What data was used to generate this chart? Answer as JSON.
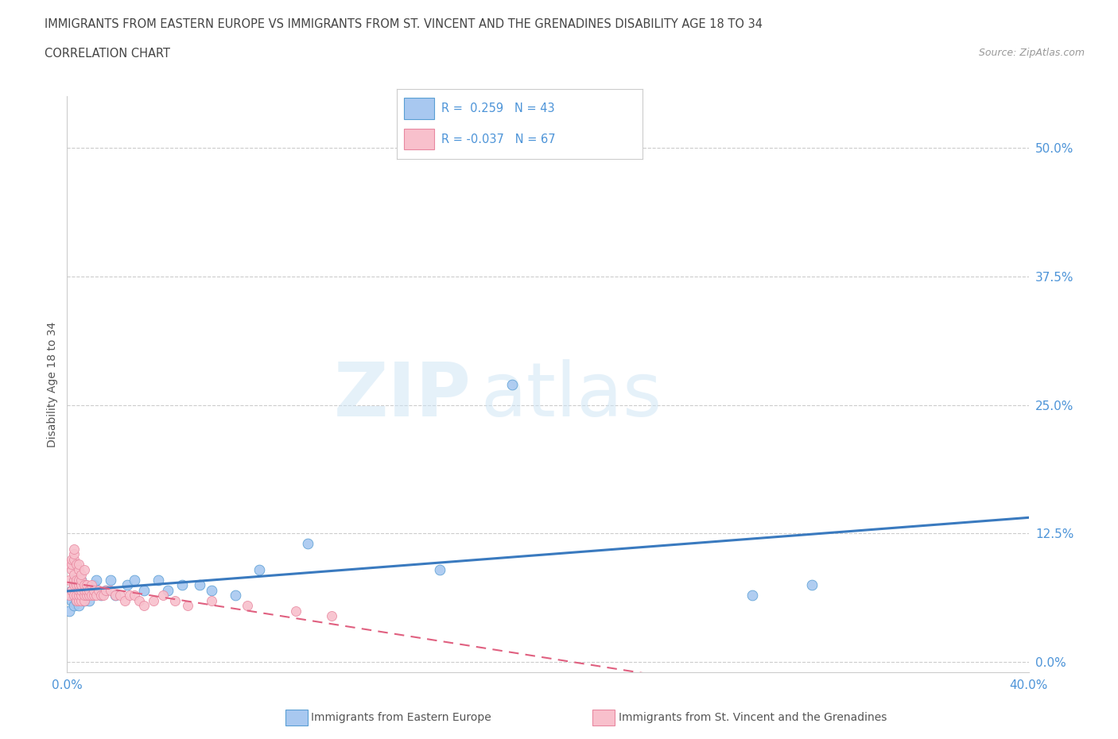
{
  "title_line1": "IMMIGRANTS FROM EASTERN EUROPE VS IMMIGRANTS FROM ST. VINCENT AND THE GRENADINES DISABILITY AGE 18 TO 34",
  "title_line2": "CORRELATION CHART",
  "source_text": "Source: ZipAtlas.com",
  "ylabel": "Disability Age 18 to 34",
  "xlim": [
    0.0,
    0.4
  ],
  "ylim": [
    -0.01,
    0.55
  ],
  "yticks": [
    0.0,
    0.125,
    0.25,
    0.375,
    0.5
  ],
  "ytick_labels": [
    "0.0%",
    "12.5%",
    "25.0%",
    "37.5%",
    "50.0%"
  ],
  "xtick_positions": [
    0.0,
    0.4
  ],
  "xtick_labels": [
    "0.0%",
    "40.0%"
  ],
  "blue_R": 0.259,
  "blue_N": 43,
  "pink_R": -0.037,
  "pink_N": 67,
  "blue_color": "#a8c8f0",
  "blue_edge_color": "#5a9fd4",
  "blue_line_color": "#3a7abf",
  "pink_color": "#f8c0cc",
  "pink_edge_color": "#e888a0",
  "pink_line_color": "#e06080",
  "watermark_zip": "ZIP",
  "watermark_atlas": "atlas",
  "background_color": "#ffffff",
  "grid_color": "#cccccc",
  "title_color": "#444444",
  "axis_label_color": "#555555",
  "tick_label_color": "#4d94d8",
  "blue_scatter_x": [
    0.001,
    0.002,
    0.002,
    0.003,
    0.003,
    0.003,
    0.004,
    0.004,
    0.004,
    0.005,
    0.005,
    0.005,
    0.005,
    0.006,
    0.006,
    0.006,
    0.007,
    0.007,
    0.008,
    0.008,
    0.009,
    0.01,
    0.011,
    0.012,
    0.014,
    0.016,
    0.018,
    0.02,
    0.025,
    0.028,
    0.032,
    0.038,
    0.042,
    0.048,
    0.055,
    0.06,
    0.07,
    0.08,
    0.1,
    0.155,
    0.185,
    0.285,
    0.31
  ],
  "blue_scatter_y": [
    0.05,
    0.06,
    0.07,
    0.055,
    0.065,
    0.08,
    0.06,
    0.075,
    0.07,
    0.065,
    0.08,
    0.055,
    0.075,
    0.07,
    0.08,
    0.065,
    0.06,
    0.075,
    0.07,
    0.065,
    0.06,
    0.07,
    0.075,
    0.08,
    0.065,
    0.07,
    0.08,
    0.065,
    0.075,
    0.08,
    0.07,
    0.08,
    0.07,
    0.075,
    0.075,
    0.07,
    0.065,
    0.09,
    0.115,
    0.09,
    0.27,
    0.065,
    0.075
  ],
  "pink_scatter_x": [
    0.001,
    0.001,
    0.001,
    0.002,
    0.002,
    0.002,
    0.002,
    0.003,
    0.003,
    0.003,
    0.003,
    0.003,
    0.003,
    0.003,
    0.004,
    0.004,
    0.004,
    0.004,
    0.004,
    0.005,
    0.005,
    0.005,
    0.005,
    0.005,
    0.005,
    0.005,
    0.006,
    0.006,
    0.006,
    0.006,
    0.006,
    0.006,
    0.007,
    0.007,
    0.007,
    0.007,
    0.007,
    0.008,
    0.008,
    0.008,
    0.009,
    0.009,
    0.01,
    0.01,
    0.011,
    0.011,
    0.012,
    0.013,
    0.014,
    0.015,
    0.016,
    0.018,
    0.02,
    0.022,
    0.024,
    0.026,
    0.028,
    0.03,
    0.032,
    0.036,
    0.04,
    0.045,
    0.05,
    0.06,
    0.075,
    0.095,
    0.11
  ],
  "pink_scatter_y": [
    0.065,
    0.08,
    0.095,
    0.07,
    0.09,
    0.095,
    0.1,
    0.065,
    0.075,
    0.08,
    0.085,
    0.1,
    0.105,
    0.11,
    0.06,
    0.065,
    0.075,
    0.08,
    0.095,
    0.06,
    0.065,
    0.07,
    0.075,
    0.08,
    0.09,
    0.095,
    0.06,
    0.065,
    0.07,
    0.075,
    0.08,
    0.085,
    0.06,
    0.065,
    0.07,
    0.075,
    0.09,
    0.065,
    0.07,
    0.075,
    0.065,
    0.07,
    0.065,
    0.075,
    0.065,
    0.07,
    0.065,
    0.07,
    0.065,
    0.065,
    0.07,
    0.07,
    0.065,
    0.065,
    0.06,
    0.065,
    0.065,
    0.06,
    0.055,
    0.06,
    0.065,
    0.06,
    0.055,
    0.06,
    0.055,
    0.05,
    0.045
  ]
}
